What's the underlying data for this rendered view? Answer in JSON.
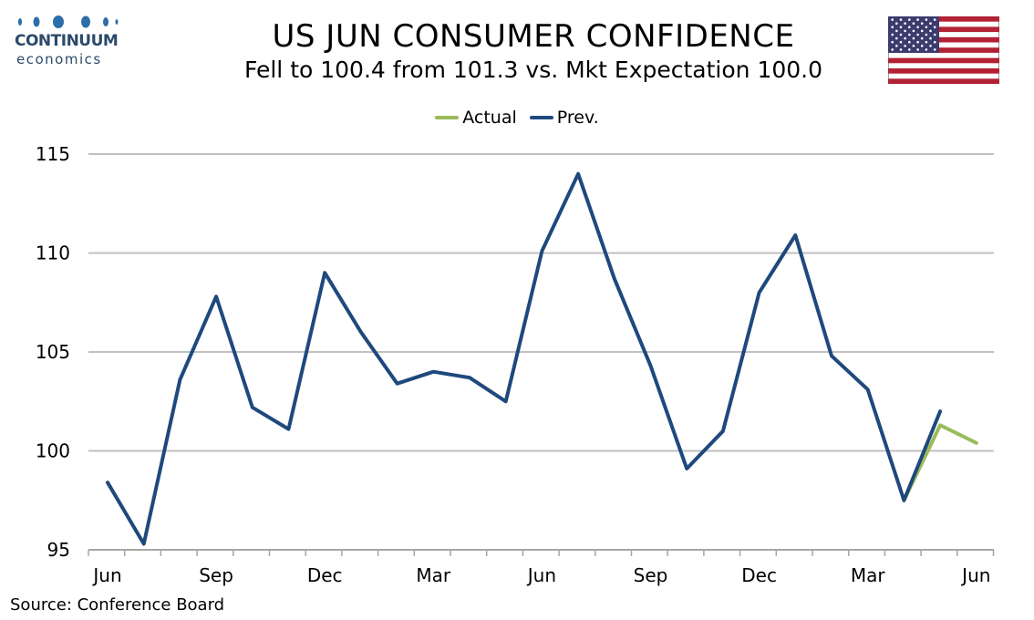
{
  "brand": {
    "name": "CONTINUUM",
    "sub": "economics"
  },
  "flag_icon": "us-flag-icon",
  "chart_data": {
    "type": "line",
    "title": "US JUN CONSUMER CONFIDENCE",
    "subtitle": "Fell to 100.4 from 101.3 vs. Mkt Expectation 100.0",
    "x_tick_labels": [
      "Jun",
      "Sep",
      "Dec",
      "Mar",
      "Jun",
      "Sep",
      "Dec",
      "Mar",
      "Jun"
    ],
    "x_tick_indices": [
      0,
      3,
      6,
      9,
      12,
      15,
      18,
      21,
      24
    ],
    "n_points": 25,
    "ylim": [
      95,
      115
    ],
    "yticks": [
      95,
      100,
      105,
      110,
      115
    ],
    "grid": true,
    "legend_position": "top-center",
    "series": [
      {
        "name": "Actual",
        "color": "#9bbb59",
        "start_index": 22,
        "values": [
          97.5,
          101.3,
          100.4
        ]
      },
      {
        "name": "Prev.",
        "color": "#1f497d",
        "start_index": 0,
        "values": [
          98.4,
          95.3,
          103.6,
          107.8,
          102.2,
          101.1,
          109.0,
          106.0,
          103.4,
          104.0,
          103.7,
          102.5,
          110.1,
          114.0,
          108.7,
          104.3,
          99.1,
          101.0,
          108.0,
          110.9,
          104.8,
          103.1,
          97.5,
          102.0
        ]
      }
    ],
    "source": "Source: Conference Board"
  }
}
